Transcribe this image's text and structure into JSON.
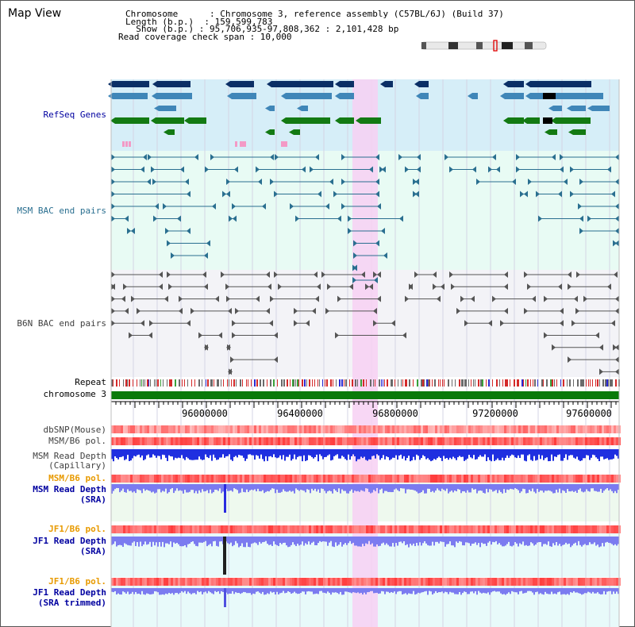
{
  "header": {
    "title": "Map View",
    "lines": [
      "Chromosome      : Chromosome 3, reference assembly (C57BL/6J) (Build 37)",
      "Length (b.p.)  : 159,599,783",
      "  Show (b.p.) : 95,706,935-97,808,362 : 2,101,428 bp",
      "Read coverage check span : 10,000"
    ]
  },
  "tracks": {
    "refseq": "RefSeq Genes",
    "msm_bac": "MSM BAC end pairs",
    "b6n_bac": "B6N BAC end pairs",
    "repeat": "Repeat",
    "chromosome": "chromosome 3",
    "dbsnp": "dbSNP(Mouse)",
    "msm_b6_pol_1": "MSM/B6 pol.",
    "msm_depth_cap_1": "MSM Read Depth",
    "msm_depth_cap_2": "(Capillary)",
    "msm_b6_pol_2": "MSM/B6 pol.",
    "msm_depth_sra_1": "MSM Read Depth",
    "msm_depth_sra_2": "(SRA)",
    "jf1_b6_pol_1": "JF1/B6 pol.",
    "jf1_depth_sra_1": "JF1 Read Depth",
    "jf1_depth_sra_2": "(SRA)",
    "jf1_b6_pol_2": "JF1/B6 pol.",
    "jf1_depth_trim_1": "JF1 Read Depth",
    "jf1_depth_trim_2": "(SRA trimmed)"
  },
  "axis": {
    "ticks": [
      "96000000",
      "96400000",
      "96800000",
      "97200000",
      "97600000"
    ]
  },
  "colors": {
    "refseq_bg": "#d6eef8",
    "bac_bg": "#e8fbf4",
    "highlight": "#f7d0f3",
    "gene_dark": "#0b2f66",
    "gene_mid": "#3f86b8",
    "gene_green": "#137a13",
    "msm_line": "#2a6f90",
    "b6n_line": "#555555",
    "chromosome": "#0a7a0a",
    "depth_blue": "#1f2fe0",
    "depth_light": "#7b7bf0",
    "label_blue": "#0000a0",
    "label_orange": "#e89a00",
    "label_teal": "#2a6f90",
    "label_gray": "#404040"
  }
}
